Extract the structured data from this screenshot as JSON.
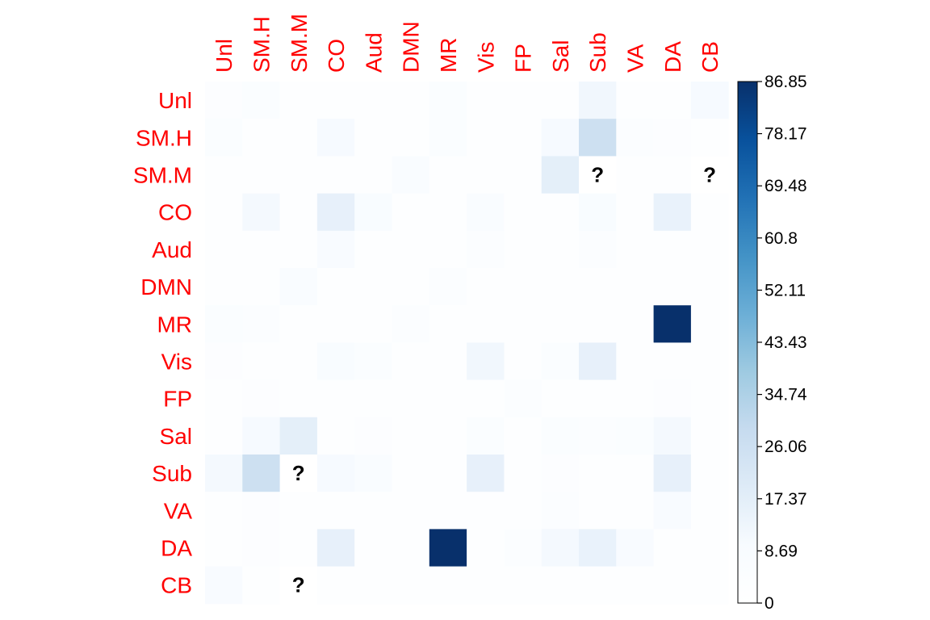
{
  "chart_data": {
    "type": "heatmap",
    "title": "",
    "xlabel": "",
    "ylabel": "",
    "rows": [
      "Unl",
      "SM.H",
      "SM.M",
      "CO",
      "Aud",
      "DMN",
      "MR",
      "Vis",
      "FP",
      "Sal",
      "Sub",
      "VA",
      "DA",
      "CB"
    ],
    "columns": [
      "Unl",
      "SM.H",
      "SM.M",
      "CO",
      "Aud",
      "DMN",
      "MR",
      "Vis",
      "FP",
      "Sal",
      "Sub",
      "VA",
      "DA",
      "CB"
    ],
    "values": [
      [
        4,
        6,
        3,
        3,
        3,
        3,
        6,
        3,
        3,
        3,
        12,
        3,
        3,
        10
      ],
      [
        6,
        3,
        3,
        10,
        3,
        3,
        6,
        3,
        3,
        10,
        26,
        5,
        4,
        3
      ],
      [
        3,
        3,
        3,
        3,
        3,
        7,
        3,
        3,
        3,
        17,
        null,
        3,
        3,
        null
      ],
      [
        3,
        11,
        3,
        16,
        8,
        3,
        3,
        7,
        3,
        3,
        8,
        3,
        15,
        3
      ],
      [
        3,
        3,
        3,
        9,
        3,
        3,
        3,
        5,
        3,
        3,
        5,
        3,
        3,
        3
      ],
      [
        3,
        3,
        7,
        3,
        3,
        3,
        5,
        3,
        3,
        3,
        3,
        3,
        3,
        3
      ],
      [
        6,
        5,
        3,
        3,
        3,
        5,
        3,
        3,
        3,
        3,
        3,
        3,
        86.85,
        3
      ],
      [
        4,
        3,
        3,
        8,
        6,
        3,
        3,
        12,
        3,
        6,
        16,
        3,
        3,
        3
      ],
      [
        3,
        4,
        3,
        3,
        3,
        3,
        3,
        3,
        5,
        3,
        3,
        3,
        4,
        3
      ],
      [
        3,
        10,
        17,
        3,
        4,
        3,
        3,
        6,
        3,
        6,
        5,
        6,
        11,
        3
      ],
      [
        11,
        26,
        null,
        10,
        7,
        3,
        3,
        16,
        3,
        4,
        3,
        3,
        16,
        3
      ],
      [
        3,
        4,
        3,
        3,
        3,
        3,
        3,
        3,
        3,
        5,
        3,
        3,
        9,
        3
      ],
      [
        3,
        4,
        3,
        16,
        3,
        3,
        86.85,
        3,
        5,
        11,
        15,
        9,
        3,
        3
      ],
      [
        9,
        3,
        null,
        3,
        3,
        3,
        3,
        3,
        3,
        3,
        3,
        3,
        3,
        3
      ]
    ],
    "missing_marker": "?",
    "color_scale": {
      "min": 0,
      "max": 86.85,
      "low_color": "#ffffff",
      "high_color": "#08306b",
      "palette": [
        "#ffffff",
        "#f7fbff",
        "#deebf7",
        "#c6dbef",
        "#9ecae1",
        "#6baed6",
        "#4292c6",
        "#2171b5",
        "#08519c",
        "#08306b"
      ],
      "tick_labels": [
        "0",
        "8.69",
        "17.37",
        "26.06",
        "34.74",
        "43.43",
        "52.11",
        "60.8",
        "69.48",
        "78.17",
        "86.85"
      ],
      "tick_values": [
        0,
        8.69,
        17.37,
        26.06,
        34.74,
        43.43,
        52.11,
        60.8,
        69.48,
        78.17,
        86.85
      ]
    },
    "label_color": "#ff0000",
    "legend_position": "right",
    "grid": false
  }
}
